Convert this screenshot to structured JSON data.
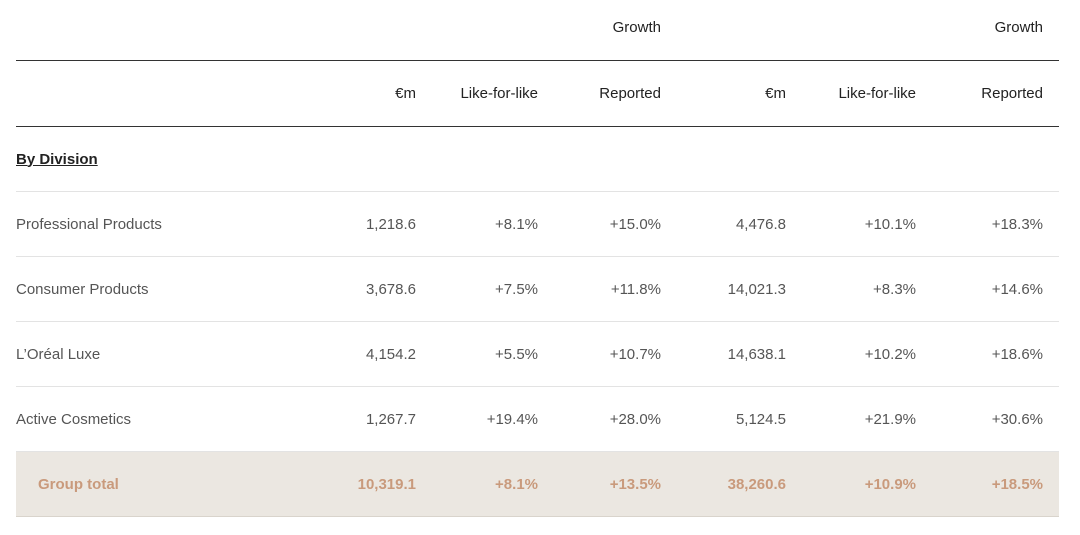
{
  "table": {
    "top_headers": {
      "group1": "Growth",
      "group2": "Growth"
    },
    "columns": [
      "€m",
      "Like-for-like",
      "Reported",
      "€m",
      "Like-for-like",
      "Reported"
    ],
    "section_title": "By Division",
    "rows": [
      {
        "label": "Professional Products",
        "values": [
          "1,218.6",
          "+8.1%",
          "+15.0%",
          "4,476.8",
          "+10.1%",
          "+18.3%"
        ]
      },
      {
        "label": "Consumer Products",
        "values": [
          "3,678.6",
          "+7.5%",
          "+11.8%",
          "14,021.3",
          "+8.3%",
          "+14.6%"
        ]
      },
      {
        "label": "L’Oréal Luxe",
        "values": [
          "4,154.2",
          "+5.5%",
          "+10.7%",
          "14,638.1",
          "+10.2%",
          "+18.6%"
        ]
      },
      {
        "label": "Active Cosmetics",
        "values": [
          "1,267.7",
          "+19.4%",
          "+28.0%",
          "5,124.5",
          "+21.9%",
          "+30.6%"
        ]
      }
    ],
    "total": {
      "label": "Group total",
      "values": [
        "10,319.1",
        "+8.1%",
        "+13.5%",
        "38,260.6",
        "+10.9%",
        "+18.5%"
      ]
    }
  }
}
